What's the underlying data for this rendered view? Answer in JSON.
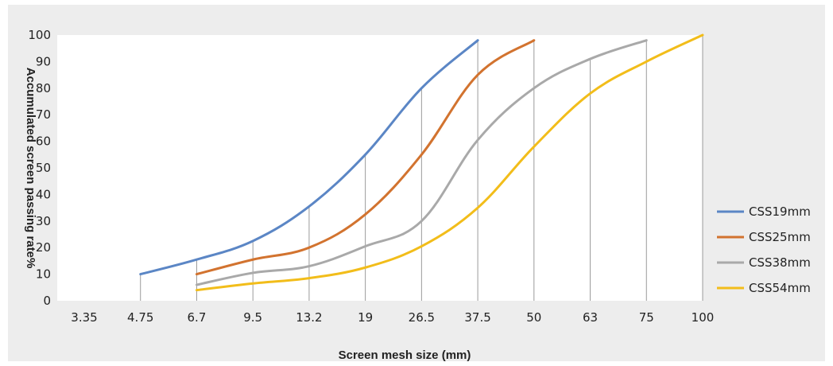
{
  "chart_data": {
    "type": "line",
    "title": "",
    "xlabel": "Screen mesh size (mm)",
    "ylabel": "Accumulated screen passing rate%",
    "x_scale": "categorical",
    "categories": [
      "3.35",
      "4.75",
      "6.7",
      "9.5",
      "13.2",
      "19",
      "26.5",
      "37.5",
      "50",
      "63",
      "75",
      "100"
    ],
    "yticks": [
      "0",
      "10",
      "20",
      "30",
      "40",
      "50",
      "60",
      "70",
      "80",
      "90",
      "100"
    ],
    "ylim": [
      0,
      100
    ],
    "grid": "vertical lines from each curve down to the x-axis at tick positions",
    "legend_position": "right",
    "colors": {
      "background": "#ededed",
      "plot_area": "#ffffff",
      "CSS19mm": "#5b86c5",
      "CSS25mm": "#d2732f",
      "CSS38mm": "#a9a9a9",
      "CSS54mm": "#f2bd1a"
    },
    "series": [
      {
        "name": "CSS19mm",
        "color": "#5b86c5",
        "x": [
          "4.75",
          "6.7",
          "9.5",
          "13.2",
          "19",
          "26.5",
          "37.5"
        ],
        "values": [
          10,
          15.5,
          22.5,
          35.5,
          55,
          80,
          98
        ]
      },
      {
        "name": "CSS25mm",
        "color": "#d2732f",
        "x": [
          "6.7",
          "9.5",
          "13.2",
          "19",
          "26.5",
          "37.5",
          "50"
        ],
        "values": [
          10,
          15.5,
          20,
          32.5,
          55,
          85,
          98
        ]
      },
      {
        "name": "CSS38mm",
        "color": "#a9a9a9",
        "x": [
          "6.7",
          "9.5",
          "13.2",
          "19",
          "26.5",
          "37.5",
          "50",
          "63",
          "75"
        ],
        "values": [
          6,
          10.5,
          13,
          20.5,
          30,
          60.5,
          80,
          91,
          98
        ]
      },
      {
        "name": "CSS54mm",
        "color": "#f2bd1a",
        "x": [
          "6.7",
          "9.5",
          "13.2",
          "19",
          "26.5",
          "37.5",
          "50",
          "63",
          "75",
          "100"
        ],
        "values": [
          4,
          6.5,
          8.5,
          12.5,
          20.5,
          35,
          58,
          78,
          90,
          100
        ]
      }
    ]
  }
}
